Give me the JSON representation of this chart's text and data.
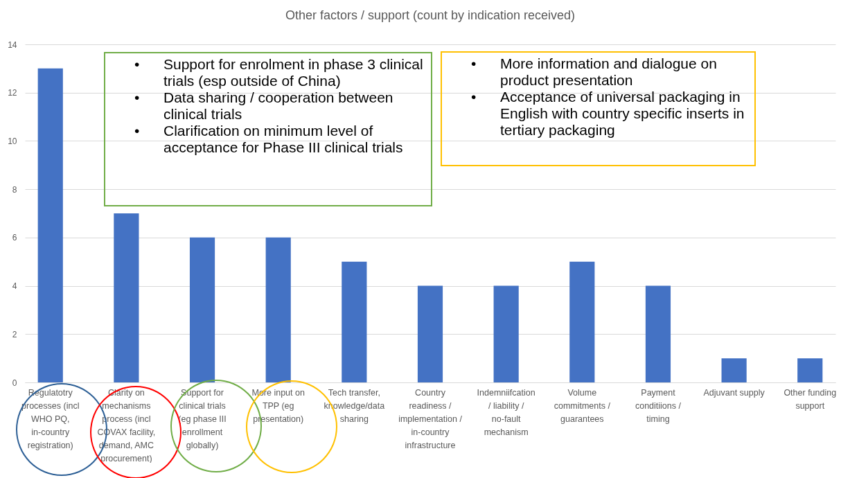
{
  "chart_data": {
    "type": "bar",
    "title": "Other factors / support (count by indication received)",
    "categories": [
      "Regulatotry processes (incl WHO PQ, in-country registration)",
      "Clarity on mechanisms process (incl COVAX facility, demand, AMC procurement)",
      "Support for clinical trials (eg phase III enrollment globally)",
      "More input on TPP (eg presentation)",
      "Tech transfer, knowledge/data sharing",
      "Country readiness / implementation / in-country infrastructure",
      "Indemniifcation / liability / no-fault mechanism",
      "Volume commitments / guarantees",
      "Payment conditiions / timing",
      "Adjuvant supply",
      "Other funding support"
    ],
    "values": [
      13,
      7,
      6,
      6,
      5,
      4,
      4,
      5,
      4,
      1,
      1
    ],
    "color": "#4472c4",
    "ylim": [
      0,
      14
    ],
    "yticks": [
      0,
      2,
      4,
      6,
      8,
      10,
      12,
      14
    ],
    "grid": "y",
    "annotations": [
      "•\tSupport for enrolment in phase 3 clinical trials (esp outside of China)\n•\tData sharing / cooperation between clinical trials\n•\tClarification on minimum level of acceptance for Phase III clinical trials",
      "•\tMore information and dialogue on product presentation\n•\tAcceptance of universal packaging in English with country specific inserts in tertiary packaging"
    ]
  }
}
